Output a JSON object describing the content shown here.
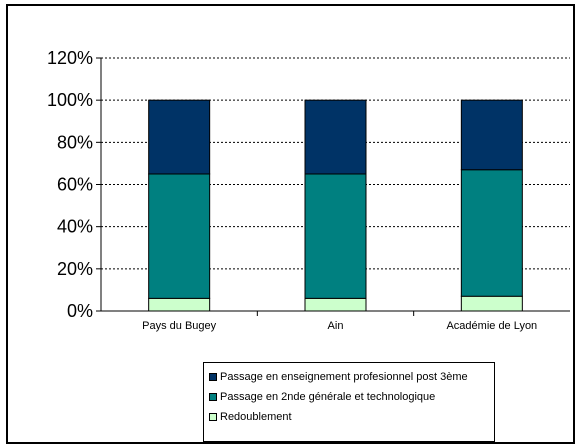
{
  "chart_data": {
    "type": "bar",
    "stacked": true,
    "title": "",
    "xlabel": "",
    "ylabel": "",
    "categories": [
      "Pays du Bugey",
      "Ain",
      "Académie de Lyon"
    ],
    "ylim": [
      0,
      120
    ],
    "yticks": [
      "0%",
      "20%",
      "40%",
      "60%",
      "80%",
      "100%",
      "120%"
    ],
    "grid": "horizontal dashed",
    "legend_position": "bottom",
    "series": [
      {
        "name": "Redoublement",
        "values": [
          6,
          6,
          7
        ],
        "color": "#ccffcc"
      },
      {
        "name": "Passage en 2nde générale et technologique",
        "values": [
          59,
          59,
          60
        ],
        "color": "#008080"
      },
      {
        "name": "Passage en enseignement profesionnel post 3ème",
        "values": [
          35,
          35,
          33
        ],
        "color": "#003366"
      }
    ]
  }
}
